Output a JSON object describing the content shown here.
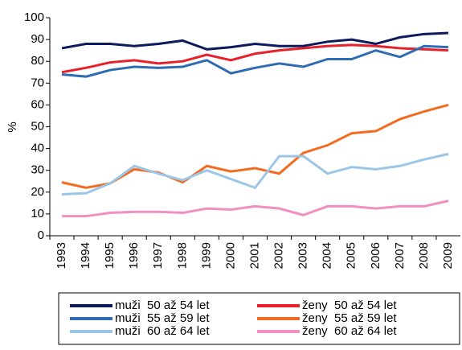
{
  "chart_data": {
    "type": "line",
    "y_label": "%",
    "categories": [
      "1993",
      "1994",
      "1995",
      "1996",
      "1997",
      "1998",
      "1999",
      "2000",
      "2001",
      "2002",
      "2003",
      "2004",
      "2005",
      "2006",
      "2007",
      "2008",
      "2009"
    ],
    "ylim": [
      0,
      100
    ],
    "yticks": [
      0,
      10,
      20,
      30,
      40,
      50,
      60,
      70,
      80,
      90,
      100
    ],
    "series": [
      {
        "name": "muži  50 až 54 let",
        "color": "#0d1a5c",
        "values": [
          86,
          88,
          88,
          87,
          88,
          89.5,
          85.5,
          86.5,
          88,
          87,
          87,
          89,
          90,
          88,
          91,
          92.5,
          93
        ]
      },
      {
        "name": "ženy  50 až 54 let",
        "color": "#e8202a",
        "values": [
          75,
          77,
          79.5,
          80.5,
          79,
          80,
          83,
          80.5,
          83.5,
          85,
          86,
          87,
          87.5,
          87,
          86,
          85.5,
          85
        ]
      },
      {
        "name": "muži  55 až 59 let",
        "color": "#2f6cb3",
        "values": [
          74,
          73,
          76,
          77.5,
          77,
          77.5,
          80.5,
          74.5,
          77,
          79,
          77.5,
          81,
          81,
          85,
          82,
          87,
          86.5
        ]
      },
      {
        "name": "ženy  55 až 59 let",
        "color": "#f26b21",
        "values": [
          24.5,
          22,
          24,
          30.5,
          29,
          24.5,
          32,
          29.5,
          31,
          28.5,
          38,
          41.5,
          47,
          48,
          53.5,
          57,
          60
        ]
      },
      {
        "name": "muži  60 až 64 let",
        "color": "#9cc6e8",
        "values": [
          19,
          19.5,
          24,
          32,
          28.5,
          25.5,
          30,
          26,
          22,
          36.5,
          36.5,
          28.5,
          31.5,
          30.5,
          32,
          35,
          37.5
        ]
      },
      {
        "name": "ženy  60 až 64 let",
        "color": "#f08fc0",
        "values": [
          9,
          9,
          10.5,
          11,
          11,
          10.5,
          12.5,
          12,
          13.5,
          12.5,
          9.5,
          13.5,
          13.5,
          12.5,
          13.5,
          13.5,
          16
        ]
      }
    ]
  }
}
